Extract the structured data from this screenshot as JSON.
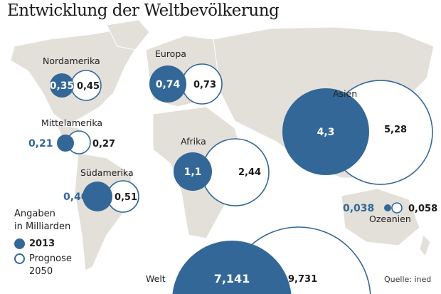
{
  "chart_data": {
    "type": "bubble",
    "title": "Entwicklung der Weltbevölkerung",
    "unit_note": "Angaben in Milliarden",
    "legend": [
      {
        "key": "2013",
        "label": "2013"
      },
      {
        "key": "2050",
        "label": "Prognose 2050"
      }
    ],
    "legend_prognose_line1": "Prognose",
    "legend_prognose_line2": "2050",
    "legend_unit_line1": "Angaben",
    "legend_unit_line2": "in Milliarden",
    "source": "Quelle: ined",
    "regions": [
      {
        "name": "Nordamerika",
        "y2013": 0.35,
        "y2050": 0.45,
        "label2013": "0,35",
        "label2050": "0,45"
      },
      {
        "name": "Europa",
        "y2013": 0.74,
        "y2050": 0.73,
        "label2013": "0,74",
        "label2050": "0,73"
      },
      {
        "name": "Asien",
        "y2013": 4.3,
        "y2050": 5.28,
        "label2013": "4,3",
        "label2050": "5,28"
      },
      {
        "name": "Mittelamerika",
        "y2013": 0.21,
        "y2050": 0.27,
        "label2013": "0,21",
        "label2050": "0,27"
      },
      {
        "name": "Afrika",
        "y2013": 1.1,
        "y2050": 2.44,
        "label2013": "1,1",
        "label2050": "2,44"
      },
      {
        "name": "Südamerika",
        "y2013": 0.4,
        "y2050": 0.51,
        "label2013": "0,40",
        "label2050": "0,51"
      },
      {
        "name": "Ozeanien",
        "y2013": 0.038,
        "y2050": 0.058,
        "label2013": "0,038",
        "label2050": "0,058"
      },
      {
        "name": "Welt",
        "y2013": 7.141,
        "y2050": 9.731,
        "label2013": "7,141",
        "label2050": "9,731"
      }
    ]
  },
  "colors": {
    "blue": "#336797",
    "land": "#e3e0da",
    "landEdge": "#ffffff"
  }
}
